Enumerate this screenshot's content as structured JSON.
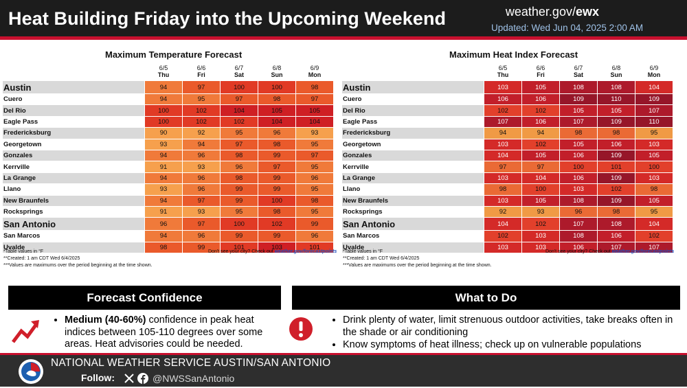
{
  "header": {
    "title": "Heat Building Friday into the Upcoming Weekend",
    "site_prefix": "weather.gov/",
    "site_office": "ewx",
    "updated": "Updated: Wed Jun 04, 2025 2:00 AM"
  },
  "days": [
    {
      "date": "6/5",
      "day": "Thu"
    },
    {
      "date": "6/6",
      "day": "Fri"
    },
    {
      "date": "6/7",
      "day": "Sat"
    },
    {
      "date": "6/8",
      "day": "Sun"
    },
    {
      "date": "6/9",
      "day": "Mon"
    }
  ],
  "cities": [
    "Austin",
    "Cuero",
    "Del Rio",
    "Eagle Pass",
    "Fredericksburg",
    "Georgetown",
    "Gonzales",
    "Kerrville",
    "La Grange",
    "Llano",
    "New Braunfels",
    "Rocksprings",
    "San Antonio",
    "San Marcos",
    "Uvalde"
  ],
  "max_temp": {
    "title": "Maximum Temperature Forecast",
    "rows": [
      [
        94,
        97,
        100,
        100,
        98
      ],
      [
        94,
        95,
        97,
        98,
        97
      ],
      [
        100,
        102,
        104,
        105,
        105
      ],
      [
        100,
        102,
        102,
        104,
        104
      ],
      [
        90,
        92,
        95,
        96,
        93
      ],
      [
        93,
        94,
        97,
        98,
        95
      ],
      [
        94,
        96,
        98,
        99,
        97
      ],
      [
        91,
        93,
        96,
        97,
        95
      ],
      [
        94,
        96,
        98,
        99,
        96
      ],
      [
        93,
        96,
        99,
        99,
        95
      ],
      [
        94,
        97,
        99,
        100,
        98
      ],
      [
        91,
        93,
        95,
        98,
        95
      ],
      [
        96,
        97,
        100,
        102,
        99
      ],
      [
        94,
        96,
        99,
        99,
        96
      ],
      [
        98,
        99,
        101,
        103,
        101
      ]
    ],
    "footnotes": [
      "*Table values in °F",
      "**Created: 1 am CDT Wed 6/4/2025",
      "***Values are maximums over the period beginning at the time shown."
    ],
    "cta": "Don't see your city? Check out ",
    "cta_link": "weather.gov/forecastpoints"
  },
  "max_heat_index": {
    "title": "Maximum Heat Index Forecast",
    "rows": [
      [
        103,
        105,
        108,
        108,
        104
      ],
      [
        106,
        106,
        109,
        110,
        109
      ],
      [
        102,
        102,
        105,
        105,
        107
      ],
      [
        107,
        106,
        107,
        109,
        110
      ],
      [
        94,
        94,
        98,
        98,
        95
      ],
      [
        103,
        102,
        105,
        106,
        103
      ],
      [
        104,
        105,
        106,
        109,
        105
      ],
      [
        97,
        97,
        100,
        101,
        100
      ],
      [
        103,
        104,
        106,
        109,
        103
      ],
      [
        98,
        100,
        103,
        102,
        98
      ],
      [
        103,
        105,
        108,
        109,
        105
      ],
      [
        92,
        93,
        96,
        98,
        95
      ],
      [
        104,
        102,
        107,
        108,
        104
      ],
      [
        102,
        103,
        108,
        106,
        102
      ],
      [
        103,
        103,
        106,
        107,
        107
      ]
    ],
    "footnotes": [
      "*Table values in °F",
      "**Created: 1 am CDT Wed 6/4/2025",
      "***Values are maximums over the period beginning at the time shown."
    ],
    "cta": "Don't see your city? Check out ",
    "cta_link": "weather.gov/forecastpoints"
  },
  "confidence": {
    "header": "Forecast Confidence",
    "level": "Medium (40-60%)",
    "text": " confidence in peak heat indices between 105-110 degrees over some areas. Heat advisories could be needed.",
    "icon": "trending-up-arrow-icon"
  },
  "what_to_do": {
    "header": "What to Do",
    "items": [
      "Drink plenty of water, limit strenuous outdoor activities, take breaks often in the shade or air conditioning",
      "Know symptoms of heat illness; check up on vulnerable populations"
    ],
    "icon": "exclamation-circle-icon"
  },
  "footer": {
    "office": "NATIONAL WEATHER SERVICE AUSTIN/SAN ANTONIO",
    "follow_label": "Follow:",
    "handle": "@NWSSanAntonio"
  },
  "colors": {
    "brand_red": "#c8102e",
    "dark": "#1c1c1c",
    "updated_blue": "#9fc2e8"
  }
}
